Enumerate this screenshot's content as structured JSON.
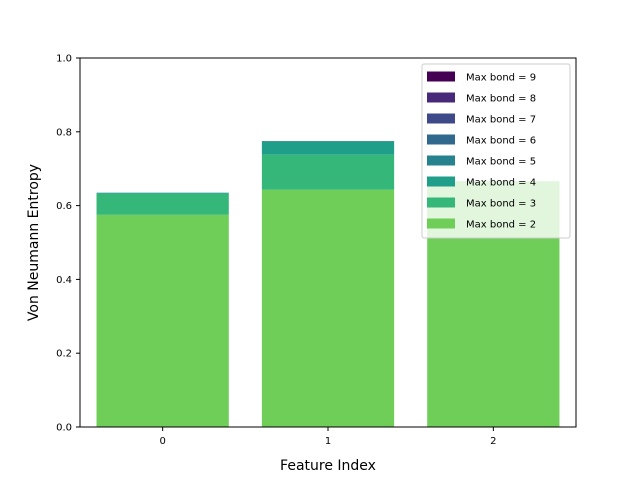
{
  "chart_data": {
    "type": "bar",
    "stacked": true,
    "title": "",
    "xlabel": "Feature Index",
    "ylabel": "Von Neumann Entropy",
    "categories": [
      "0",
      "1",
      "2"
    ],
    "ylim": [
      0,
      1.0
    ],
    "yticks": [
      "0.0",
      "0.2",
      "0.4",
      "0.6",
      "0.8",
      "1.0"
    ],
    "grid": false,
    "legend_position": "top-right",
    "series": [
      {
        "name": "Max bond = 2",
        "color": "#6ece58",
        "values": [
          0.575,
          0.643,
          0.666
        ]
      },
      {
        "name": "Max bond = 3",
        "color": "#35b779",
        "values": [
          0.057,
          0.095,
          0.0
        ]
      },
      {
        "name": "Max bond = 4",
        "color": "#1f9e89",
        "values": [
          0.003,
          0.035,
          0.0
        ]
      },
      {
        "name": "Max bond = 5",
        "color": "#26828e",
        "values": [
          0.0,
          0.002,
          0.0
        ]
      },
      {
        "name": "Max bond = 6",
        "color": "#31688e",
        "values": [
          0.0,
          0.0,
          0.0
        ]
      },
      {
        "name": "Max bond = 7",
        "color": "#3e4989",
        "values": [
          0.0,
          0.0,
          0.0
        ]
      },
      {
        "name": "Max bond = 8",
        "color": "#482878",
        "values": [
          0.0,
          0.0,
          0.0
        ]
      },
      {
        "name": "Max bond = 9",
        "color": "#440154",
        "values": [
          0.0,
          0.0,
          0.0
        ]
      }
    ]
  }
}
